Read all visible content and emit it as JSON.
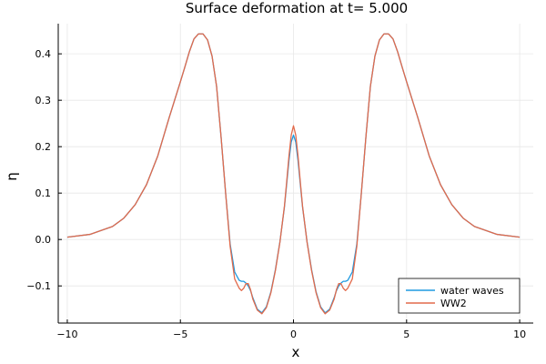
{
  "chart_data": {
    "type": "line",
    "title": "Surface deformation at t=   5.000",
    "xlabel": "x",
    "ylabel": "η",
    "xlim": [
      -10.4,
      10.6
    ],
    "ylim": [
      -0.18,
      0.465
    ],
    "xticks": [
      -10,
      -5,
      0,
      5,
      10
    ],
    "xtick_labels": [
      "−10",
      "−5",
      "0",
      "5",
      "10"
    ],
    "yticks": [
      -0.1,
      0.0,
      0.1,
      0.2,
      0.3,
      0.4
    ],
    "ytick_labels": [
      "−0.1",
      "0.0",
      "0.1",
      "0.2",
      "0.3",
      "0.4"
    ],
    "grid": true,
    "legend_position": "bottom-right",
    "series": [
      {
        "name": "water waves",
        "color": "#1f9ae0",
        "x": [
          -10,
          -9,
          -8,
          -7.5,
          -7,
          -6.5,
          -6,
          -5.5,
          -5,
          -4.8,
          -4.6,
          -4.4,
          -4.2,
          -4.0,
          -3.8,
          -3.6,
          -3.4,
          -3.2,
          -3.0,
          -2.8,
          -2.6,
          -2.4,
          -2.3,
          -2.2,
          -2.1,
          -2.0,
          -1.9,
          -1.8,
          -1.6,
          -1.4,
          -1.2,
          -1.0,
          -0.8,
          -0.6,
          -0.4,
          -0.3,
          -0.2,
          -0.1,
          0.0,
          0.1,
          0.2,
          0.3,
          0.4,
          0.6,
          0.8,
          1.0,
          1.2,
          1.4,
          1.6,
          1.8,
          1.9,
          2.0,
          2.1,
          2.2,
          2.3,
          2.4,
          2.6,
          2.8,
          3.0,
          3.2,
          3.4,
          3.6,
          3.8,
          4.0,
          4.2,
          4.4,
          4.6,
          4.8,
          5,
          5.5,
          6,
          6.5,
          7,
          7.5,
          8,
          9,
          10
        ],
        "y": [
          0.005,
          0.011,
          0.028,
          0.046,
          0.075,
          0.118,
          0.18,
          0.262,
          0.34,
          0.372,
          0.405,
          0.432,
          0.443,
          0.443,
          0.43,
          0.395,
          0.33,
          0.22,
          0.1,
          -0.01,
          -0.07,
          -0.088,
          -0.09,
          -0.09,
          -0.094,
          -0.1,
          -0.11,
          -0.125,
          -0.15,
          -0.158,
          -0.145,
          -0.113,
          -0.065,
          -0.005,
          0.07,
          0.12,
          0.17,
          0.21,
          0.225,
          0.21,
          0.17,
          0.12,
          0.07,
          -0.005,
          -0.065,
          -0.113,
          -0.145,
          -0.158,
          -0.15,
          -0.125,
          -0.11,
          -0.1,
          -0.094,
          -0.09,
          -0.09,
          -0.088,
          -0.07,
          -0.01,
          0.1,
          0.22,
          0.33,
          0.395,
          0.43,
          0.443,
          0.443,
          0.432,
          0.405,
          0.372,
          0.34,
          0.262,
          0.18,
          0.118,
          0.075,
          0.046,
          0.028,
          0.011,
          0.005
        ]
      },
      {
        "name": "WW2",
        "color": "#e26a4b",
        "x": [
          -10,
          -9,
          -8,
          -7.5,
          -7,
          -6.5,
          -6,
          -5.5,
          -5,
          -4.8,
          -4.6,
          -4.4,
          -4.2,
          -4.0,
          -3.8,
          -3.6,
          -3.4,
          -3.2,
          -3.0,
          -2.8,
          -2.6,
          -2.4,
          -2.3,
          -2.2,
          -2.1,
          -2.0,
          -1.9,
          -1.8,
          -1.6,
          -1.4,
          -1.2,
          -1.0,
          -0.8,
          -0.6,
          -0.4,
          -0.3,
          -0.2,
          -0.1,
          0.0,
          0.1,
          0.2,
          0.3,
          0.4,
          0.6,
          0.8,
          1.0,
          1.2,
          1.4,
          1.6,
          1.8,
          1.9,
          2.0,
          2.1,
          2.2,
          2.3,
          2.4,
          2.6,
          2.8,
          3.0,
          3.2,
          3.4,
          3.6,
          3.8,
          4.0,
          4.2,
          4.4,
          4.6,
          4.8,
          5,
          5.5,
          6,
          6.5,
          7,
          7.5,
          8,
          9,
          10
        ],
        "y": [
          0.005,
          0.011,
          0.028,
          0.046,
          0.075,
          0.118,
          0.18,
          0.262,
          0.34,
          0.372,
          0.405,
          0.432,
          0.443,
          0.443,
          0.43,
          0.395,
          0.33,
          0.22,
          0.1,
          -0.015,
          -0.085,
          -0.105,
          -0.11,
          -0.105,
          -0.095,
          -0.095,
          -0.108,
          -0.128,
          -0.152,
          -0.16,
          -0.147,
          -0.115,
          -0.067,
          -0.006,
          0.072,
          0.125,
          0.18,
          0.225,
          0.245,
          0.225,
          0.18,
          0.125,
          0.072,
          -0.006,
          -0.067,
          -0.115,
          -0.147,
          -0.16,
          -0.152,
          -0.128,
          -0.108,
          -0.095,
          -0.095,
          -0.105,
          -0.11,
          -0.105,
          -0.085,
          -0.015,
          0.1,
          0.22,
          0.33,
          0.395,
          0.43,
          0.443,
          0.443,
          0.432,
          0.405,
          0.372,
          0.34,
          0.262,
          0.18,
          0.118,
          0.075,
          0.046,
          0.028,
          0.011,
          0.005
        ]
      }
    ]
  }
}
